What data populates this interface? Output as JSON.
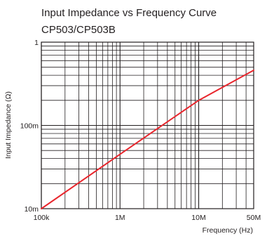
{
  "chart_data": {
    "type": "line",
    "title": "Input Impedance vs Frequency Curve",
    "subtitle": "CP503/CP503B",
    "xlabel": "Frequency (Hz)",
    "ylabel": "Input Impedance (Ω)",
    "x_scale": "log",
    "y_scale": "log",
    "xlim": [
      100000,
      50000000
    ],
    "ylim": [
      0.01,
      1
    ],
    "x_ticks": [
      {
        "value": 100000,
        "label": "100k"
      },
      {
        "value": 1000000,
        "label": "1M"
      },
      {
        "value": 10000000,
        "label": "10M"
      },
      {
        "value": 50000000,
        "label": "50M"
      }
    ],
    "y_ticks": [
      {
        "value": 0.01,
        "label": "10m"
      },
      {
        "value": 0.1,
        "label": "100m"
      },
      {
        "value": 1,
        "label": "1"
      }
    ],
    "grid": true,
    "series": [
      {
        "color": "#e8262d",
        "x": [
          100000,
          1000000,
          10000000,
          50000000
        ],
        "y": [
          0.01,
          0.045,
          0.2,
          0.46
        ]
      }
    ],
    "colors": {
      "series": "#e8262d",
      "grid": "#231f20",
      "text": "#231f20"
    }
  }
}
